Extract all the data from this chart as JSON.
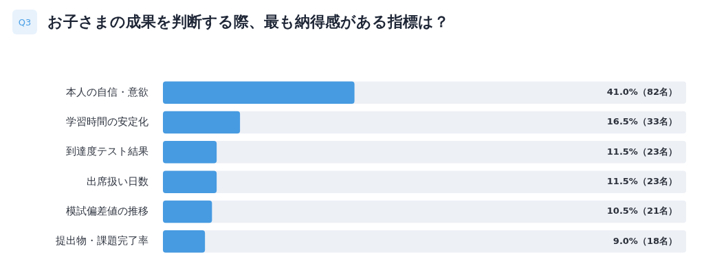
{
  "chart_data": {
    "type": "bar",
    "orientation": "horizontal",
    "title": "お子さまの成果を判断する際、最も納得感がある指標は？",
    "annotations": [
      "Q3"
    ],
    "categories": [
      "本人の自信・意欲",
      "学習時間の安定化",
      "到達度テスト結果",
      "出席扱い日数",
      "模試偏差値の推移",
      "提出物・課題完了率"
    ],
    "values": [
      41.0,
      16.5,
      11.5,
      11.5,
      10.5,
      9.0
    ],
    "value_labels": [
      "41.0%（82名）",
      "16.5%（33名）",
      "11.5%（23名）",
      "11.5%（23名）",
      "10.5%（21名）",
      "9.0%（18名）"
    ],
    "color": "#479be1",
    "xlim": [
      0,
      112
    ],
    "tick_labels": "y"
  }
}
